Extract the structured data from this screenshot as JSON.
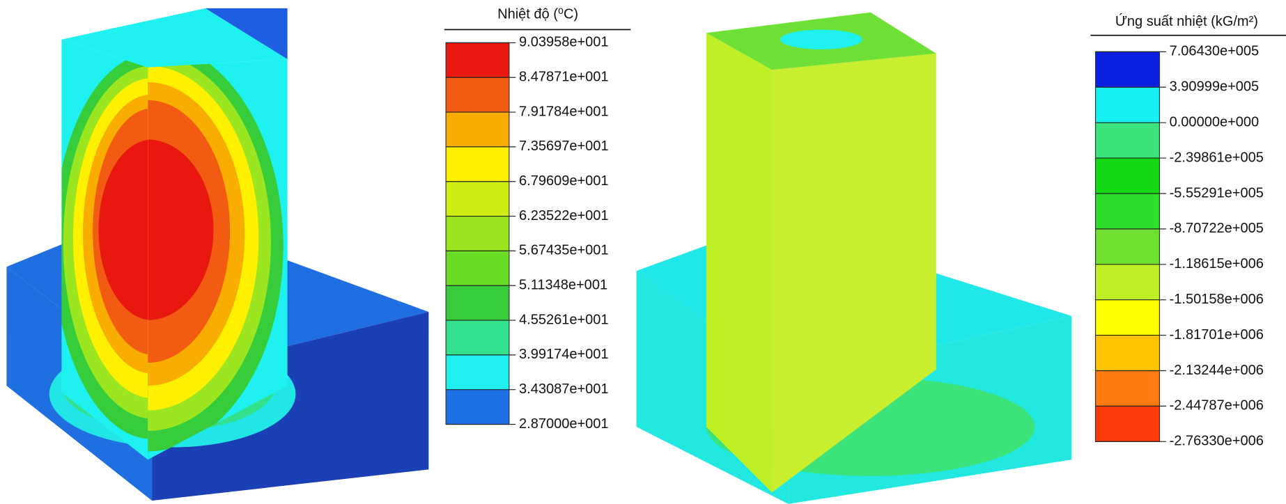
{
  "left_legend": {
    "title": "Nhiệt độ (⁰C)",
    "labels": [
      "9.03958e+001",
      "8.47871e+001",
      "7.91784e+001",
      "7.35697e+001",
      "6.79609e+001",
      "6.23522e+001",
      "5.67435e+001",
      "5.11348e+001",
      "4.55261e+001",
      "3.99174e+001",
      "3.43087e+001",
      "2.87000e+001"
    ],
    "colors": [
      "#e8170f",
      "#f25c12",
      "#f9ad00",
      "#fff000",
      "#cdee10",
      "#9be620",
      "#69dd26",
      "#36cc3a",
      "#33e08c",
      "#1ff1f1",
      "#1e72e6"
    ]
  },
  "right_legend": {
    "title": "Ứng suất nhiệt (kG/m²)",
    "labels": [
      "7.06430e+005",
      "3.90999e+005",
      "0.00000e+000",
      "-2.39861e+005",
      "-5.55291e+005",
      "-8.70722e+005",
      "-1.18615e+006",
      "-1.50158e+006",
      "-1.81701e+006",
      "-2.13244e+006",
      "-2.44787e+006",
      "-2.76330e+006"
    ],
    "colors": [
      "#0a1fe0",
      "#16f2f2",
      "#3be37a",
      "#15d815",
      "#2dde2d",
      "#70e030",
      "#bff026",
      "#ffff00",
      "#ffc400",
      "#ff7a10",
      "#ff3a0a"
    ]
  }
}
